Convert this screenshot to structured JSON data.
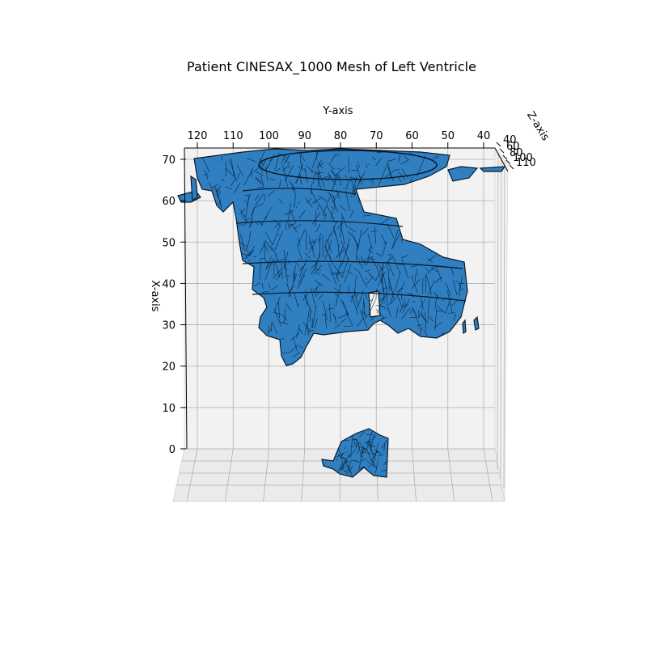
{
  "chart_data": {
    "type": "mesh3d",
    "title": "Patient CINESAX_1000 Mesh of Left Ventricle",
    "xlabel": "X-axis",
    "ylabel": "Y-axis",
    "zlabel": "Z-axis",
    "y_ticks": [
      "120",
      "110",
      "100",
      "90",
      "80",
      "70",
      "60",
      "50",
      "40"
    ],
    "y_tick_values": [
      120,
      110,
      100,
      90,
      80,
      70,
      60,
      50,
      40
    ],
    "x_ticks": [
      "70",
      "60",
      "50",
      "40",
      "30",
      "20",
      "10",
      "0"
    ],
    "x_tick_values": [
      70,
      60,
      50,
      40,
      30,
      20,
      10,
      0
    ],
    "z_ticks": [
      "40",
      "60",
      "80",
      "100",
      "110"
    ],
    "ylim": [
      125,
      37
    ],
    "xlim": [
      0,
      72
    ],
    "mesh_color": "#2f7fc1",
    "edge_color": "#061626",
    "grid": true
  }
}
